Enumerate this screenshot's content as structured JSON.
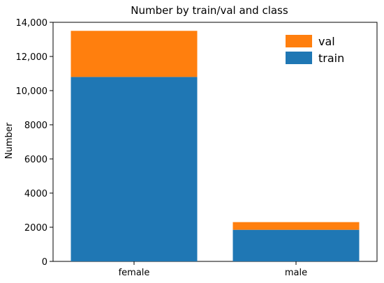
{
  "chart_data": {
    "type": "bar",
    "stacked": true,
    "title": "Number by train/val and class",
    "xlabel": "",
    "ylabel": "Number",
    "categories": [
      "female",
      "male"
    ],
    "series": [
      {
        "name": "train",
        "values": [
          10800,
          1850
        ],
        "color": "#1f77b4"
      },
      {
        "name": "val",
        "values": [
          2700,
          450
        ],
        "color": "#ff7f0e"
      }
    ],
    "ylim": [
      0,
      14000
    ],
    "yticks": [
      0,
      2000,
      4000,
      6000,
      8000,
      10000,
      12000,
      14000
    ],
    "ytick_labels": [
      "0",
      "2000",
      "4000",
      "6000",
      "8000",
      "10,000",
      "12,000",
      "14,000"
    ],
    "legend": {
      "placement": "top-right",
      "entries": [
        "val",
        "train"
      ]
    },
    "grid": false
  }
}
